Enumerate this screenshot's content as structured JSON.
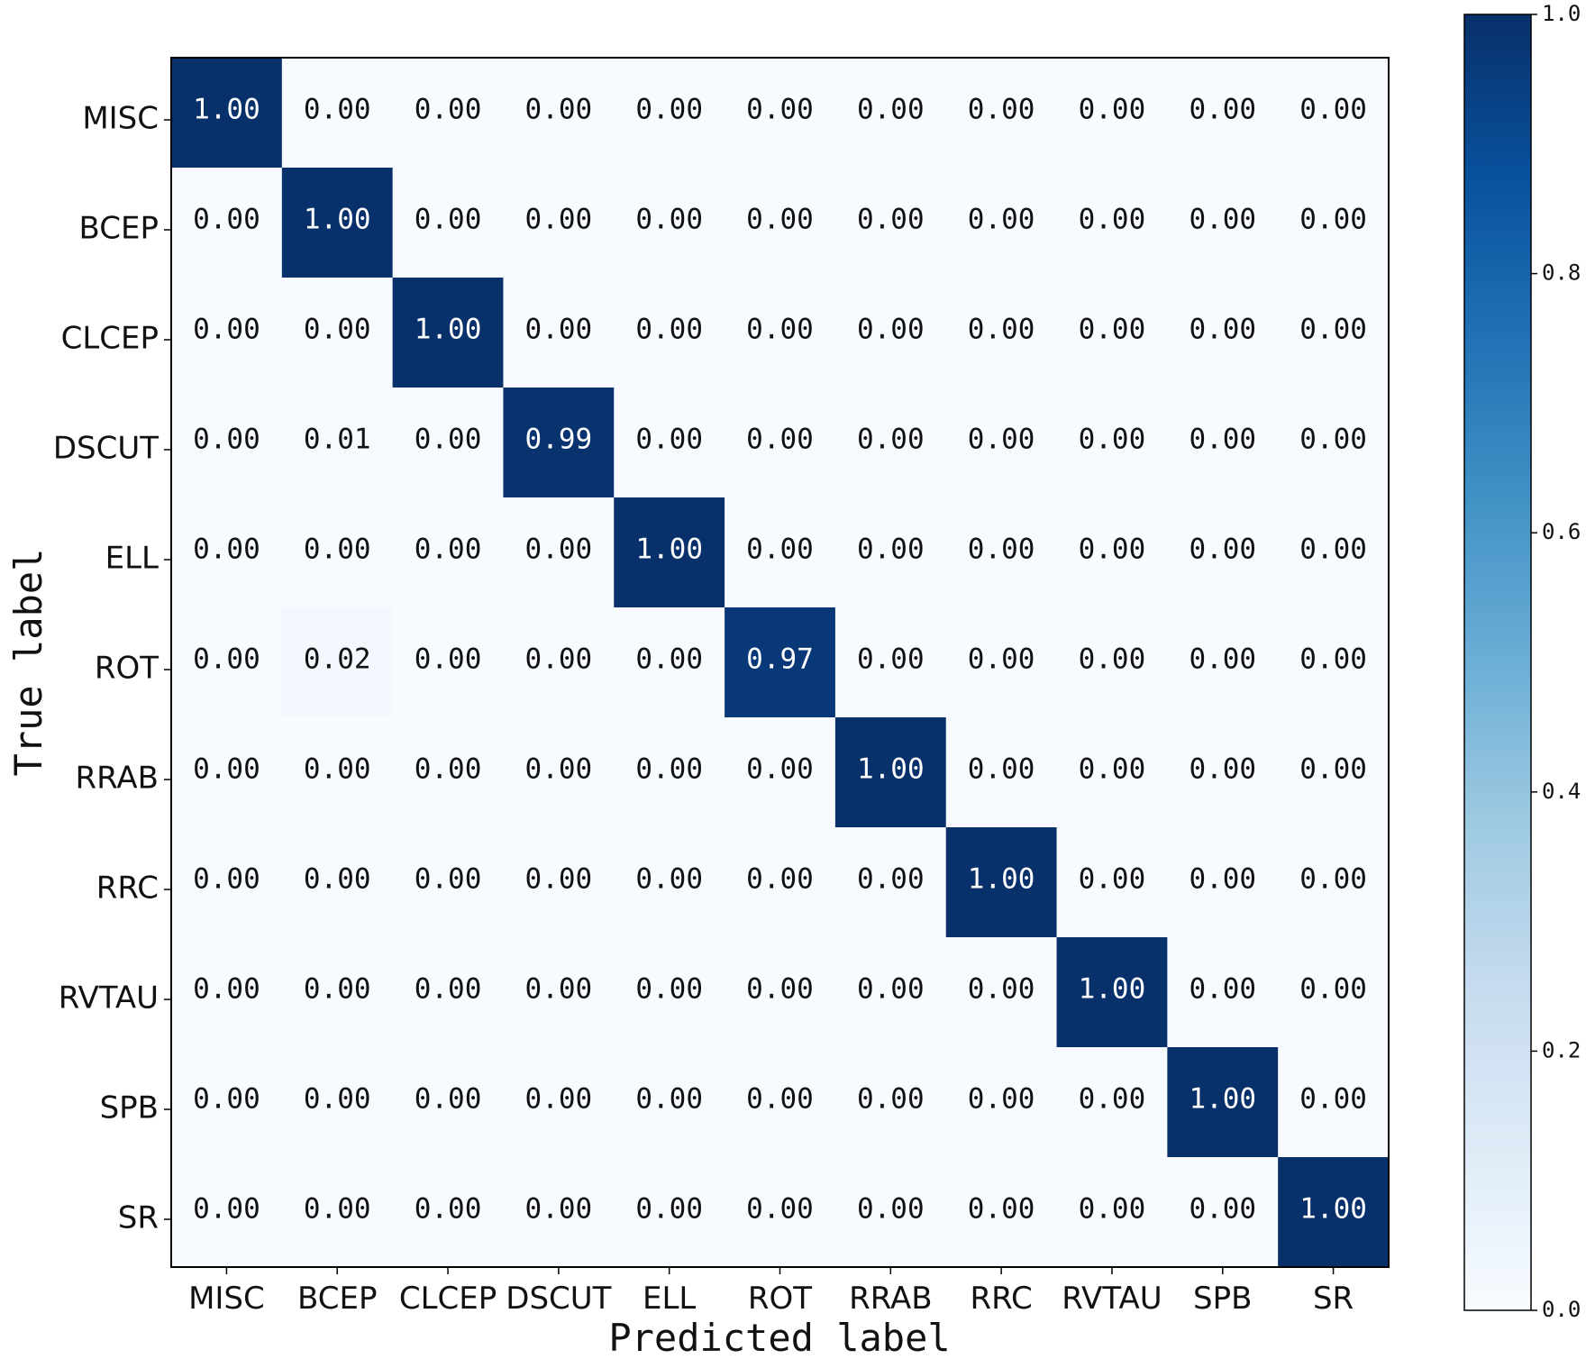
{
  "chart_data": {
    "type": "heatmap",
    "title": "",
    "xlabel": "Predicted label",
    "ylabel": "True label",
    "categories": [
      "MISC",
      "BCEP",
      "CLCEP",
      "DSCUT",
      "ELL",
      "ROT",
      "RRAB",
      "RRC",
      "RVTAU",
      "SPB",
      "SR"
    ],
    "x_categories": [
      "MISC",
      "BCEP",
      "CLCEP",
      "DSCUT",
      "ELL",
      "ROT",
      "RRAB",
      "RRC",
      "RVTAU",
      "SPB",
      "SR"
    ],
    "y_categories": [
      "MISC",
      "BCEP",
      "CLCEP",
      "DSCUT",
      "ELL",
      "ROT",
      "RRAB",
      "RRC",
      "RVTAU",
      "SPB",
      "SR"
    ],
    "values": [
      [
        1.0,
        0.0,
        0.0,
        0.0,
        0.0,
        0.0,
        0.0,
        0.0,
        0.0,
        0.0,
        0.0
      ],
      [
        0.0,
        1.0,
        0.0,
        0.0,
        0.0,
        0.0,
        0.0,
        0.0,
        0.0,
        0.0,
        0.0
      ],
      [
        0.0,
        0.0,
        1.0,
        0.0,
        0.0,
        0.0,
        0.0,
        0.0,
        0.0,
        0.0,
        0.0
      ],
      [
        0.0,
        0.01,
        0.0,
        0.99,
        0.0,
        0.0,
        0.0,
        0.0,
        0.0,
        0.0,
        0.0
      ],
      [
        0.0,
        0.0,
        0.0,
        0.0,
        1.0,
        0.0,
        0.0,
        0.0,
        0.0,
        0.0,
        0.0
      ],
      [
        0.0,
        0.02,
        0.0,
        0.0,
        0.0,
        0.97,
        0.0,
        0.0,
        0.0,
        0.0,
        0.0
      ],
      [
        0.0,
        0.0,
        0.0,
        0.0,
        0.0,
        0.0,
        1.0,
        0.0,
        0.0,
        0.0,
        0.0
      ],
      [
        0.0,
        0.0,
        0.0,
        0.0,
        0.0,
        0.0,
        0.0,
        1.0,
        0.0,
        0.0,
        0.0
      ],
      [
        0.0,
        0.0,
        0.0,
        0.0,
        0.0,
        0.0,
        0.0,
        0.0,
        1.0,
        0.0,
        0.0
      ],
      [
        0.0,
        0.0,
        0.0,
        0.0,
        0.0,
        0.0,
        0.0,
        0.0,
        0.0,
        1.0,
        0.0
      ],
      [
        0.0,
        0.0,
        0.0,
        0.0,
        0.0,
        0.0,
        0.0,
        0.0,
        0.0,
        0.0,
        1.0
      ]
    ],
    "value_format": "0.00",
    "colormap": "Blues",
    "color_range": [
      0.0,
      1.0
    ],
    "colorbar_ticks": [
      "0.0",
      "0.2",
      "0.4",
      "0.6",
      "0.8",
      "1.0"
    ],
    "colorbar_tick_values": [
      0.0,
      0.2,
      0.4,
      0.6,
      0.8,
      1.0
    ],
    "colorbar_placement": "right",
    "grid": false
  },
  "colors": {
    "cmap_low": "#f7fbff",
    "cmap_mid": "#6aaed6",
    "cmap_high": "#08306b",
    "text_light": "#ffffff",
    "text_dark": "#111111"
  }
}
